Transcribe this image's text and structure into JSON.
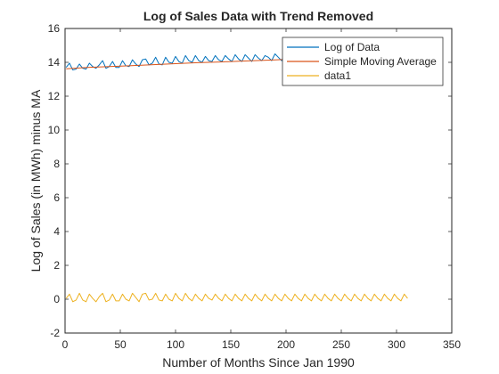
{
  "chart_data": {
    "type": "line",
    "title": "Log of Sales Data with Trend Removed",
    "xlabel": "Number of Months Since Jan 1990",
    "ylabel": "Log of Sales (in MWh) minus MA",
    "xlim": [
      0,
      350
    ],
    "ylim": [
      -2,
      16
    ],
    "x_ticks": [
      0,
      50,
      100,
      150,
      200,
      250,
      300,
      350
    ],
    "y_ticks": [
      -2,
      0,
      2,
      4,
      6,
      8,
      10,
      12,
      14,
      16
    ],
    "grid": false,
    "legend_position": "top-right",
    "series": [
      {
        "name": "Log of Data",
        "color": "#0072BD",
        "x": [
          1,
          4,
          7,
          10,
          13,
          16,
          19,
          22,
          25,
          28,
          31,
          34,
          37,
          40,
          43,
          46,
          49,
          52,
          55,
          58,
          61,
          64,
          67,
          70,
          73,
          76,
          79,
          82,
          85,
          88,
          91,
          94,
          97,
          100,
          103,
          106,
          109,
          112,
          115,
          118,
          121,
          124,
          127,
          130,
          133,
          136,
          139,
          142,
          145,
          148,
          151,
          154,
          157,
          160,
          163,
          166,
          169,
          172,
          175,
          178,
          181,
          184,
          187,
          190,
          193,
          196,
          199,
          202,
          205,
          208,
          211,
          214,
          217,
          220,
          223,
          226,
          229,
          232,
          235,
          238,
          241,
          244,
          247,
          250,
          253,
          256,
          259,
          262,
          265,
          268,
          271,
          274,
          277,
          280,
          283,
          286,
          289,
          292,
          295,
          298,
          301,
          304,
          307,
          310
        ],
        "values": [
          13.7,
          13.95,
          13.55,
          13.6,
          13.9,
          13.65,
          13.6,
          13.95,
          13.75,
          13.65,
          13.85,
          14.1,
          13.65,
          13.75,
          14.05,
          13.7,
          13.7,
          14.1,
          13.8,
          13.75,
          14.15,
          13.9,
          13.75,
          14.15,
          14.2,
          13.85,
          13.95,
          14.3,
          13.9,
          13.85,
          14.3,
          14.0,
          13.95,
          14.35,
          14.05,
          13.95,
          14.4,
          14.1,
          14.0,
          14.4,
          14.1,
          14.0,
          14.35,
          14.1,
          14.05,
          14.4,
          14.15,
          14.05,
          14.4,
          14.2,
          14.05,
          14.45,
          14.2,
          14.05,
          14.45,
          14.25,
          14.05,
          14.45,
          14.25,
          14.1,
          14.4,
          14.3,
          14.1,
          14.5,
          14.3,
          14.1,
          14.5,
          14.3,
          14.15,
          14.5,
          14.35,
          14.15,
          14.5,
          14.35,
          14.2,
          14.5,
          14.4,
          14.2,
          14.55,
          14.4,
          14.2,
          14.55,
          14.4,
          14.25,
          14.55,
          14.45,
          14.25,
          14.55,
          14.45,
          14.3,
          14.6,
          14.45,
          14.3,
          14.6,
          14.5,
          14.3,
          14.6,
          14.5,
          14.35,
          14.6,
          14.5,
          14.35,
          14.6,
          14.5
        ]
      },
      {
        "name": "Simple Moving Average",
        "color": "#D95319",
        "x": [
          1,
          20,
          40,
          60,
          80,
          100,
          120,
          140,
          160,
          180,
          200,
          220,
          240,
          260,
          280,
          300,
          310
        ],
        "values": [
          13.62,
          13.7,
          13.75,
          13.8,
          13.86,
          13.92,
          13.98,
          14.02,
          14.07,
          14.12,
          14.17,
          14.22,
          14.26,
          14.3,
          14.34,
          14.38,
          14.4
        ]
      },
      {
        "name": "data1",
        "color": "#EDB120",
        "x": [
          1,
          4,
          7,
          10,
          13,
          16,
          19,
          22,
          25,
          28,
          31,
          34,
          37,
          40,
          43,
          46,
          49,
          52,
          55,
          58,
          61,
          64,
          67,
          70,
          73,
          76,
          79,
          82,
          85,
          88,
          91,
          94,
          97,
          100,
          103,
          106,
          109,
          112,
          115,
          118,
          121,
          124,
          127,
          130,
          133,
          136,
          139,
          142,
          145,
          148,
          151,
          154,
          157,
          160,
          163,
          166,
          169,
          172,
          175,
          178,
          181,
          184,
          187,
          190,
          193,
          196,
          199,
          202,
          205,
          208,
          211,
          214,
          217,
          220,
          223,
          226,
          229,
          232,
          235,
          238,
          241,
          244,
          247,
          250,
          253,
          256,
          259,
          262,
          265,
          268,
          271,
          274,
          277,
          280,
          283,
          286,
          289,
          292,
          295,
          298,
          301,
          304,
          307,
          310
        ],
        "values": [
          0.05,
          0.3,
          -0.15,
          -0.05,
          0.35,
          -0.05,
          -0.15,
          0.3,
          0.05,
          -0.15,
          0.15,
          0.35,
          -0.15,
          -0.05,
          0.3,
          -0.1,
          -0.1,
          0.3,
          0.0,
          -0.1,
          0.35,
          0.1,
          -0.15,
          0.3,
          0.35,
          -0.05,
          0.0,
          0.35,
          -0.05,
          -0.1,
          0.3,
          0.0,
          -0.1,
          0.35,
          0.05,
          -0.1,
          0.35,
          0.05,
          -0.1,
          0.3,
          0.05,
          -0.1,
          0.3,
          0.05,
          -0.05,
          0.3,
          0.05,
          -0.1,
          0.3,
          0.05,
          -0.1,
          0.3,
          0.05,
          -0.1,
          0.3,
          0.05,
          -0.1,
          0.3,
          0.05,
          -0.1,
          0.3,
          0.05,
          -0.1,
          0.3,
          0.05,
          -0.1,
          0.3,
          0.05,
          -0.1,
          0.3,
          0.05,
          -0.1,
          0.3,
          0.05,
          -0.1,
          0.3,
          0.05,
          -0.1,
          0.3,
          0.05,
          -0.1,
          0.3,
          0.05,
          -0.1,
          0.3,
          0.05,
          -0.1,
          0.3,
          0.05,
          -0.1,
          0.3,
          0.05,
          -0.1,
          0.3,
          0.05,
          -0.1,
          0.3,
          0.05,
          -0.1,
          0.3,
          0.05,
          -0.1,
          0.3,
          0.05
        ]
      }
    ]
  }
}
